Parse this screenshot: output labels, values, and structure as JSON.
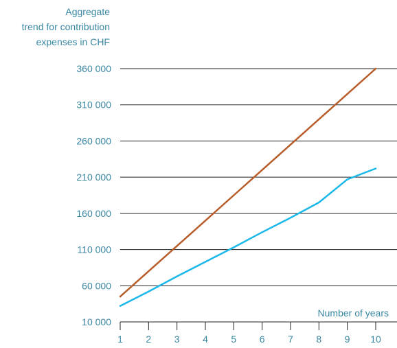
{
  "chart_data": {
    "type": "line",
    "title": "",
    "ylabel_lines": [
      "Aggregate",
      "trend for contribution",
      "expenses in CHF"
    ],
    "xlabel": "Number of years",
    "x": [
      1,
      2,
      3,
      4,
      5,
      6,
      7,
      8,
      9,
      10
    ],
    "y_ticks": [
      10000,
      60000,
      110000,
      160000,
      210000,
      260000,
      310000,
      360000
    ],
    "y_tick_labels": [
      "10 000",
      "60 000",
      "110 000",
      "160 000",
      "210 000",
      "260 000",
      "310 000",
      "360 000"
    ],
    "ylim": [
      10000,
      360000
    ],
    "xlim": [
      1,
      10
    ],
    "grid": "horizontal",
    "series": [
      {
        "color": "#b85c2a",
        "values": [
          45000,
          80000,
          115000,
          150000,
          185000,
          220000,
          255000,
          290000,
          325000,
          360000
        ]
      },
      {
        "color": "#1ab8e8",
        "values": [
          32000,
          52000,
          73000,
          93000,
          113000,
          134000,
          154000,
          175000,
          207000,
          222000
        ]
      }
    ],
    "colors": {
      "axis_text": "#3a87a3",
      "gridline": "#222222"
    }
  }
}
